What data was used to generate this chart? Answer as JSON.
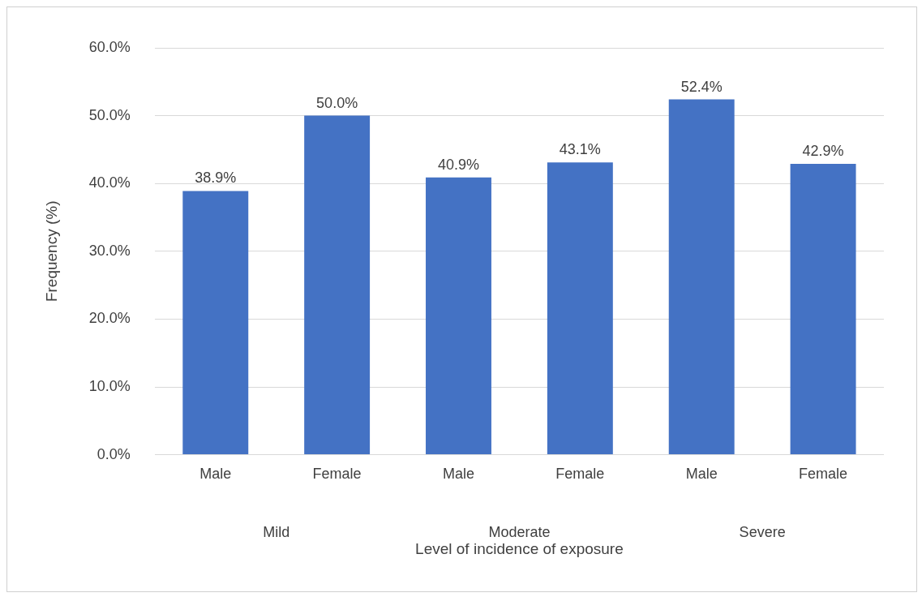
{
  "chart_data": {
    "type": "bar",
    "xlabel": "Level of incidence of exposure",
    "ylabel": "Frequency (%)",
    "categories": [
      "Male",
      "Female",
      "Male",
      "Female",
      "Male",
      "Female"
    ],
    "values": [
      38.9,
      50.0,
      40.9,
      43.1,
      52.4,
      42.9
    ],
    "value_labels": [
      "38.9%",
      "50.0%",
      "40.9%",
      "43.1%",
      "52.4%",
      "42.9%"
    ],
    "color": "#4472c4",
    "ylim": [
      0,
      60
    ],
    "yticks": [
      {
        "value": 0,
        "label": "0.0%"
      },
      {
        "value": 10,
        "label": "10.0%"
      },
      {
        "value": 20,
        "label": "20.0%"
      },
      {
        "value": 30,
        "label": "30.0%"
      },
      {
        "value": 40,
        "label": "40.0%"
      },
      {
        "value": 50,
        "label": "50.0%"
      },
      {
        "value": 60,
        "label": "60.0%"
      }
    ],
    "grid": "y",
    "legend": false,
    "annotations": [
      "Mild",
      "Moderate",
      "Severe"
    ]
  }
}
